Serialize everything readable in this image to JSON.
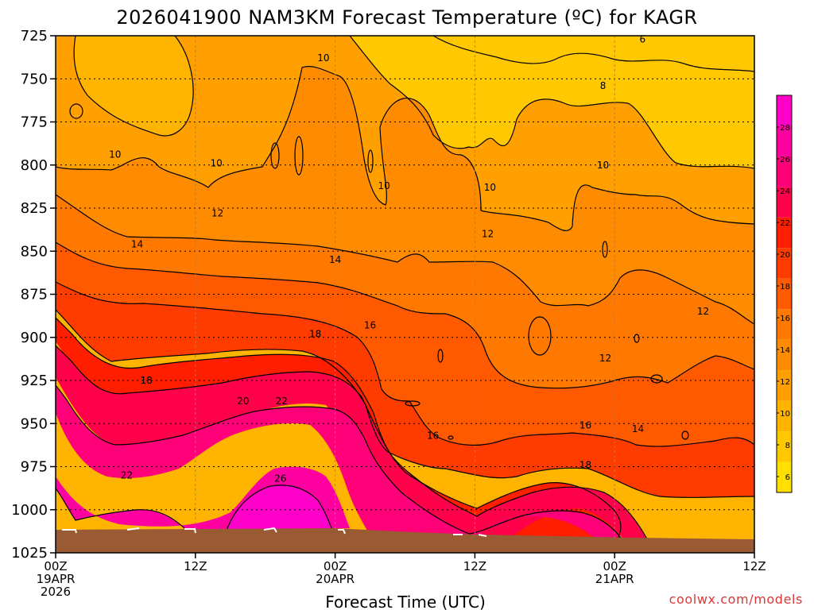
{
  "chart_data": {
    "type": "heatmap",
    "title": "2026041900 NAM3KM Forecast Temperature (ºC) for KAGR",
    "xlabel": "Forecast Time (UTC)",
    "ylabel": "",
    "xlim": [
      0,
      60
    ],
    "ylim": [
      1025,
      725
    ],
    "y_ticks": [
      725,
      750,
      775,
      800,
      825,
      850,
      875,
      900,
      925,
      950,
      975,
      1000,
      1025
    ],
    "x_ticks": [
      {
        "hour": 0,
        "lines": [
          "00Z",
          "19APR",
          "2026"
        ]
      },
      {
        "hour": 12,
        "lines": [
          "12Z"
        ]
      },
      {
        "hour": 24,
        "lines": [
          "00Z",
          "20APR"
        ]
      },
      {
        "hour": 36,
        "lines": [
          "12Z"
        ]
      },
      {
        "hour": 48,
        "lines": [
          "00Z",
          "21APR"
        ]
      },
      {
        "hour": 60,
        "lines": [
          "12Z"
        ]
      }
    ],
    "colorbar": {
      "ticks": [
        6,
        8,
        10,
        12,
        14,
        16,
        18,
        20,
        22,
        24,
        26,
        28
      ],
      "range": [
        5,
        30
      ],
      "colors": [
        "#ffe000",
        "#ffc800",
        "#ffb400",
        "#ffa000",
        "#ff8c00",
        "#ff7800",
        "#ff5a00",
        "#ff3c00",
        "#ff1e00",
        "#ff004a",
        "#ff0078",
        "#ff00a0",
        "#ff00c8"
      ]
    },
    "ground_color": "#9a5a34",
    "contour_labels": [
      {
        "text": "10",
        "hour": 23.0,
        "p": 738
      },
      {
        "text": "10",
        "hour": 5.1,
        "p": 794
      },
      {
        "text": "10",
        "hour": 13.8,
        "p": 799
      },
      {
        "text": "10",
        "hour": 28.2,
        "p": 812
      },
      {
        "text": "10",
        "hour": 37.3,
        "p": 813
      },
      {
        "text": "10",
        "hour": 47.0,
        "p": 800
      },
      {
        "text": "8",
        "hour": 47.0,
        "p": 754
      },
      {
        "text": "6",
        "hour": 50.4,
        "p": 727
      },
      {
        "text": "12",
        "hour": 13.9,
        "p": 828
      },
      {
        "text": "12",
        "hour": 37.1,
        "p": 840
      },
      {
        "text": "12",
        "hour": 55.6,
        "p": 885
      },
      {
        "text": "12",
        "hour": 47.2,
        "p": 912
      },
      {
        "text": "14",
        "hour": 7.0,
        "p": 846
      },
      {
        "text": "14",
        "hour": 24.0,
        "p": 855
      },
      {
        "text": "14",
        "hour": 50.0,
        "p": 953
      },
      {
        "text": "16",
        "hour": 27.0,
        "p": 893
      },
      {
        "text": "16",
        "hour": 32.4,
        "p": 957
      },
      {
        "text": "16",
        "hour": 45.5,
        "p": 951
      },
      {
        "text": "18",
        "hour": 22.3,
        "p": 898
      },
      {
        "text": "18",
        "hour": 7.8,
        "p": 925
      },
      {
        "text": "18",
        "hour": 45.5,
        "p": 974
      },
      {
        "text": "20",
        "hour": 16.1,
        "p": 937
      },
      {
        "text": "22",
        "hour": 19.4,
        "p": 937
      },
      {
        "text": "22",
        "hour": 6.1,
        "p": 980
      },
      {
        "text": "26",
        "hour": 19.3,
        "p": 982
      }
    ]
  },
  "credit": "coolwx.com/models"
}
